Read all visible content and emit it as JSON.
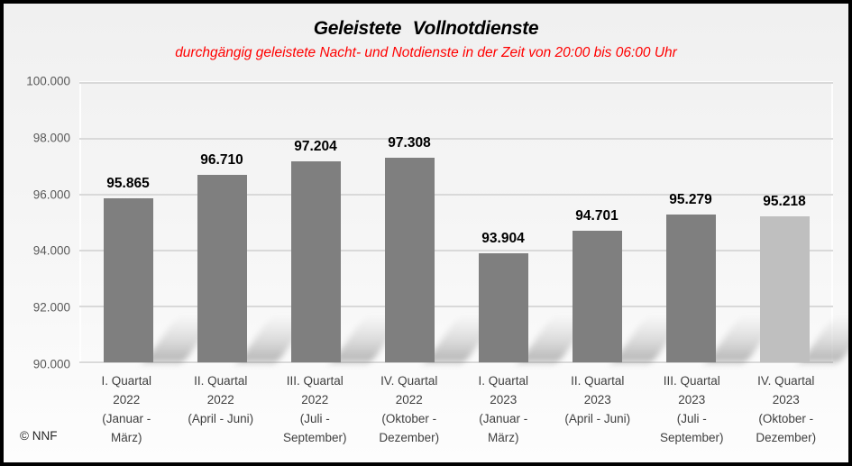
{
  "chart_data": {
    "type": "bar",
    "title": "Geleistete Vollnotdienste",
    "subtitle": "durchgängig geleistete Nacht- und Notdienste in der Zeit von 20:00 bis 06:00 Uhr",
    "xlabel": "",
    "ylabel": "",
    "ylim": [
      90000,
      100000
    ],
    "yticks": [
      90000,
      92000,
      94000,
      96000,
      98000,
      100000
    ],
    "ytick_labels": [
      "90.000",
      "92.000",
      "94.000",
      "96.000",
      "98.000",
      "100.000"
    ],
    "grid": "horizontal",
    "legend": "none",
    "categories": [
      "I. Quartal\n2022\n(Januar -\nMärz)",
      "II. Quartal\n2022\n(April - Juni)",
      "III. Quartal\n2022\n(Juli -\nSeptember)",
      "IV. Quartal\n2022\n(Oktober -\nDezember)",
      "I. Quartal\n2023\n(Januar -\nMärz)",
      "II. Quartal\n2023\n(April - Juni)",
      "III. Quartal\n2023\n(Juli -\nSeptember)",
      "IV. Quartal\n2023\n(Oktober -\nDezember)"
    ],
    "values": [
      95865,
      96710,
      97204,
      97308,
      93904,
      94701,
      95279,
      95218
    ],
    "value_labels": [
      "95.865",
      "96.710",
      "97.204",
      "97.308",
      "93.904",
      "94.701",
      "95.279",
      "95.218"
    ],
    "bar_colors": [
      "#7F7F7F",
      "#7F7F7F",
      "#7F7F7F",
      "#7F7F7F",
      "#7F7F7F",
      "#7F7F7F",
      "#7F7F7F",
      "#BFBFBF"
    ]
  },
  "colors": {
    "bar_default": "#7F7F7F",
    "bar_highlight": "#BFBFBF",
    "gridline": "#D9D9D9",
    "subtitle_red": "#FF0000",
    "axis_text": "#595959",
    "frame_border": "#000000"
  },
  "footer": {
    "copyright": "© NNF"
  }
}
